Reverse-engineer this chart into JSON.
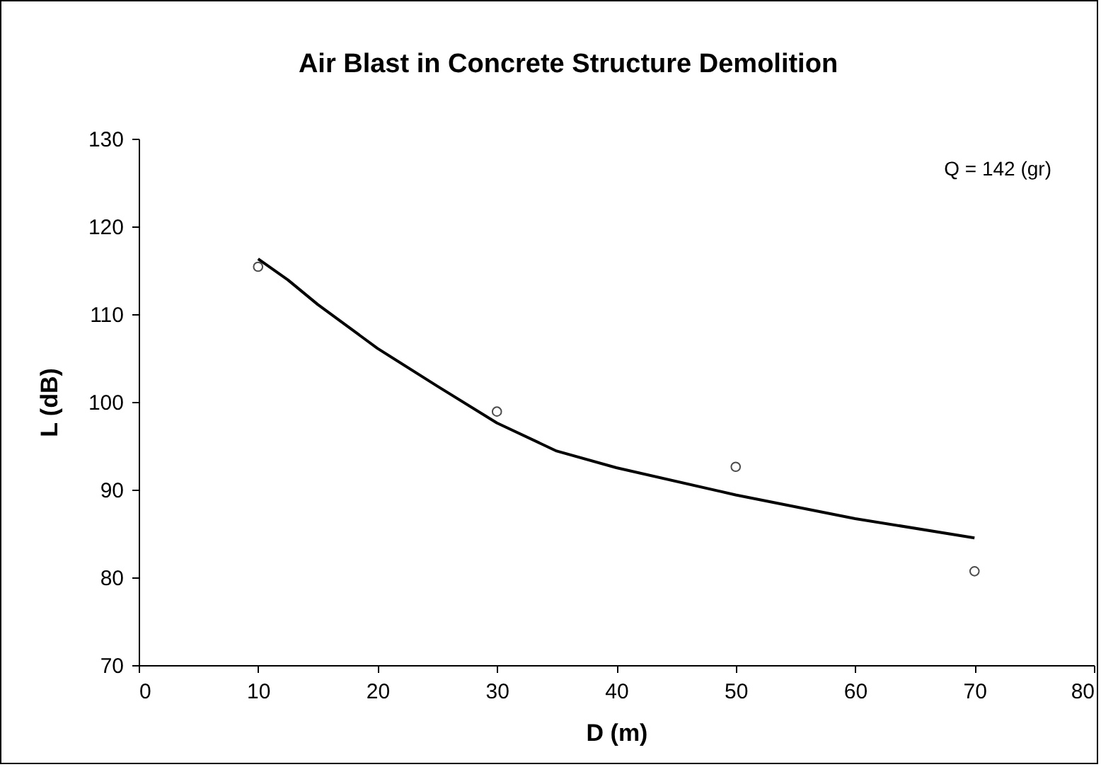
{
  "chart_data": {
    "type": "line",
    "title": "Air Blast in Concrete Structure Demolition",
    "xlabel": "D (m)",
    "ylabel": "L (dB)",
    "annotations": [
      "Q = 142 (gr)"
    ],
    "xlim": [
      0,
      80
    ],
    "xticks": [
      0,
      10,
      20,
      30,
      40,
      50,
      60,
      70,
      80
    ],
    "ylim": [
      70,
      130
    ],
    "yticks": [
      70,
      80,
      90,
      100,
      110,
      120,
      130
    ],
    "grid": false,
    "series": [
      {
        "type": "scatter",
        "marker": "circle",
        "color": "#000000",
        "x": [
          10,
          30,
          50,
          70
        ],
        "values": [
          115.4,
          98.9,
          92.6,
          80.7
        ]
      },
      {
        "marker": "none",
        "color": "#000000",
        "x": [
          10,
          12.5,
          15,
          20,
          25,
          30,
          35,
          40,
          50,
          60,
          70
        ],
        "values": [
          116.3,
          113.9,
          111.1,
          106.1,
          101.8,
          97.6,
          94.4,
          92.5,
          89.4,
          86.7,
          84.5
        ]
      }
    ]
  }
}
